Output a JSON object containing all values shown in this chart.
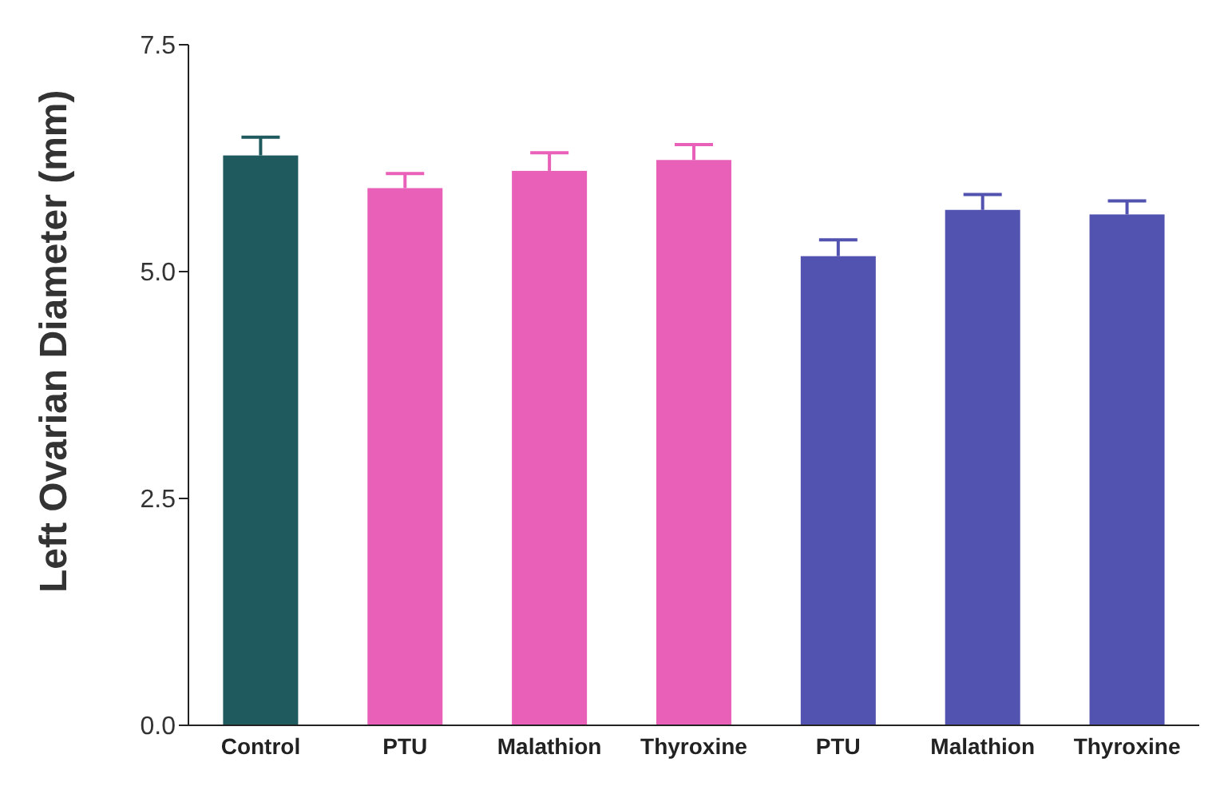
{
  "chart_data": {
    "type": "bar",
    "ylabel": "Left Ovarian Diameter (mm)",
    "categories": [
      "Control",
      "PTU",
      "Malathion",
      "Thyroxine",
      "PTU",
      "Malathion",
      "Thyroxine"
    ],
    "values": [
      6.28,
      5.92,
      6.11,
      6.23,
      5.17,
      5.68,
      5.63
    ],
    "errors": [
      0.2,
      0.16,
      0.2,
      0.17,
      0.18,
      0.17,
      0.15
    ],
    "colors": [
      "#1f5a5e",
      "#e860b8",
      "#e860b8",
      "#e860b8",
      "#5252b0",
      "#5252b0",
      "#5252b0"
    ],
    "ylim": [
      0,
      7.5
    ],
    "yticks": [
      {
        "value": 0,
        "label": "0.0"
      },
      {
        "value": 2.5,
        "label": "2.5"
      },
      {
        "value": 5,
        "label": "5.0"
      },
      {
        "value": 7.5,
        "label": "7.5"
      }
    ],
    "grid": false
  }
}
